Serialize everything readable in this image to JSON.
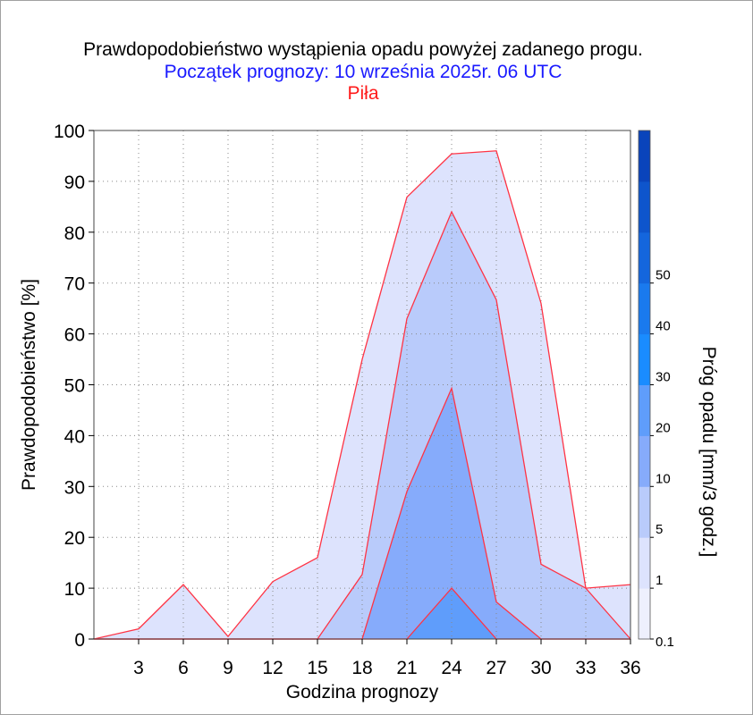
{
  "titles": {
    "main": "Prawdopodobieństwo wystąpienia opadu powyżej zadanego progu.",
    "forecast_start": "Początek prognozy: 10 września 2025r. 06 UTC",
    "location": "Piła"
  },
  "colors": {
    "title": "#000000",
    "forecast_start": "#1a1aff",
    "location": "#ff1a1a",
    "series_stroke": "#ff3344"
  },
  "chart_data": {
    "type": "area",
    "title": "Prawdopodobieństwo wystąpienia opadu powyżej zadanego progu.",
    "xlabel": "Godzina prognozy",
    "ylabel": "Prawdopodobieństwo [%]",
    "x": [
      0,
      3,
      6,
      9,
      12,
      15,
      18,
      21,
      24,
      27,
      30,
      33,
      36
    ],
    "xticks": [
      "3",
      "6",
      "9",
      "12",
      "15",
      "18",
      "21",
      "24",
      "27",
      "30",
      "33",
      "36"
    ],
    "yticks": [
      "0",
      "10",
      "20",
      "30",
      "40",
      "50",
      "60",
      "70",
      "80",
      "90",
      "100"
    ],
    "xlim": [
      0,
      36
    ],
    "ylim": [
      0,
      100
    ],
    "grid": true,
    "series": [
      {
        "threshold": "0.1",
        "color": "#dde3fd",
        "values": [
          0,
          2,
          10.7,
          0.5,
          11.3,
          16,
          55,
          86.9,
          95.4,
          96,
          66,
          10,
          10.7
        ]
      },
      {
        "threshold": "1",
        "color": "#b9cbfb",
        "values": [
          0,
          0,
          0,
          0,
          0,
          0,
          12.7,
          63,
          84,
          66.7,
          14.7,
          10,
          0
        ]
      },
      {
        "threshold": "5",
        "color": "#86abfb",
        "values": [
          0,
          0,
          0,
          0,
          0,
          0,
          0,
          29,
          49.3,
          7.3,
          0,
          0,
          0
        ]
      },
      {
        "threshold": "10",
        "color": "#5f9dfb",
        "values": [
          0,
          0,
          0,
          0,
          0,
          0,
          0,
          0,
          10,
          0,
          0,
          0,
          0
        ]
      }
    ],
    "colorbar": {
      "label": "Próg opadu [mm/3 godz.]",
      "ticks": [
        "0.1",
        "1",
        "5",
        "10",
        "20",
        "30",
        "40",
        "50"
      ],
      "colors": [
        "#eef0fd",
        "#dde3fd",
        "#b9cbfb",
        "#86abfb",
        "#5f9dfb",
        "#1a8cff",
        "#1a7aee",
        "#1466dd",
        "#0e55cc",
        "#0a44bb"
      ]
    }
  }
}
